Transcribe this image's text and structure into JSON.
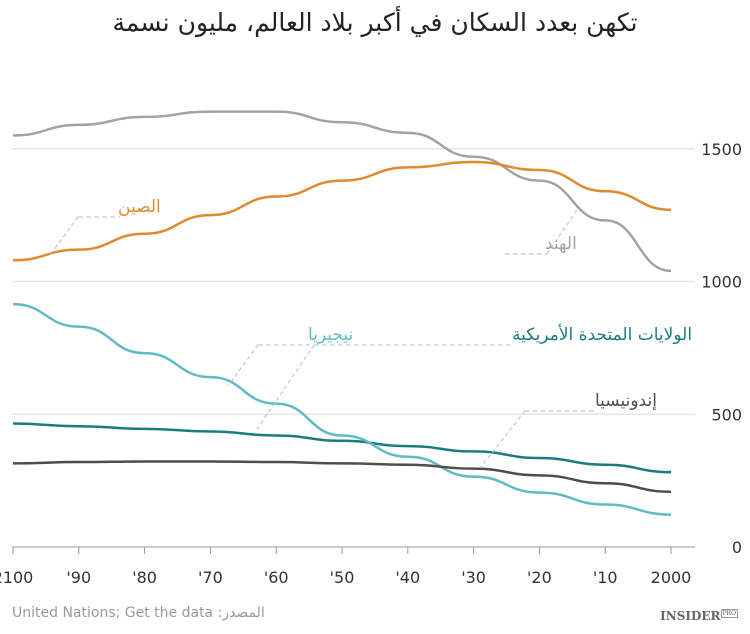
{
  "chart_data": {
    "type": "line",
    "title": "تكهن بعدد السكان في أكبر بلاد العالم، مليون نسمة",
    "x": [
      2000,
      2010,
      2020,
      2030,
      2040,
      2050,
      2060,
      2070,
      2080,
      2090,
      2100
    ],
    "x_reversed": true,
    "xticks": [
      "2100",
      "'90",
      "'80",
      "'70",
      "'60",
      "'50",
      "'40",
      "'30",
      "'20",
      "'10",
      "2000"
    ],
    "yticks": [
      0,
      500,
      1000,
      1500
    ],
    "ylim": [
      0,
      1700
    ],
    "grid": "horizontal",
    "series": [
      {
        "name": "الهند",
        "color": "#a3a3a3",
        "values": [
          1040,
          1230,
          1380,
          1470,
          1560,
          1600,
          1640,
          1640,
          1620,
          1590,
          1550
        ]
      },
      {
        "name": "الصين",
        "color": "#df8a2c",
        "values": [
          1270,
          1340,
          1420,
          1450,
          1430,
          1380,
          1320,
          1250,
          1180,
          1120,
          1080
        ]
      },
      {
        "name": "الولايات المتحدة الأمريكية",
        "color": "#1b7c80",
        "values": [
          282,
          310,
          335,
          360,
          380,
          400,
          420,
          435,
          445,
          455,
          465
        ]
      },
      {
        "name": "نيجيريا",
        "color": "#5fbcc4",
        "values": [
          122,
          160,
          205,
          265,
          340,
          420,
          540,
          640,
          730,
          830,
          915
        ]
      },
      {
        "name": "إندونيسيا",
        "color": "#4d4d4d",
        "values": [
          208,
          240,
          270,
          295,
          310,
          315,
          320,
          322,
          322,
          320,
          315
        ]
      }
    ]
  },
  "footer": {
    "source": "United Nations; Get the data :المصدر",
    "brand": "INSIDER",
    "brand_sup": "PRO"
  }
}
